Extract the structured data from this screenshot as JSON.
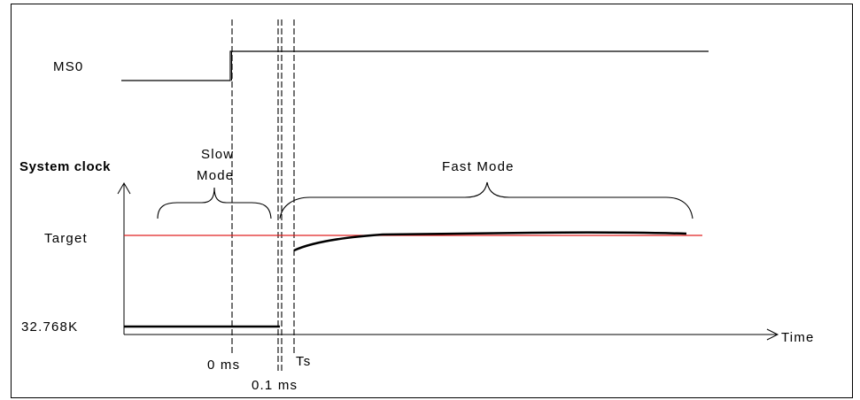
{
  "signal": {
    "label": "MS0"
  },
  "axis": {
    "y_label": "System clock",
    "x_label": "Time",
    "target_label": "Target",
    "base_label": "32.768K"
  },
  "modes": {
    "slow_line1": "Slow",
    "slow_line2": "Mode",
    "fast": "Fast Mode"
  },
  "markers": {
    "t0": "0 ms",
    "t1": "0.1 ms",
    "ts": "Ts"
  },
  "colors": {
    "target_line": "#e02020",
    "ink": "#000000"
  }
}
